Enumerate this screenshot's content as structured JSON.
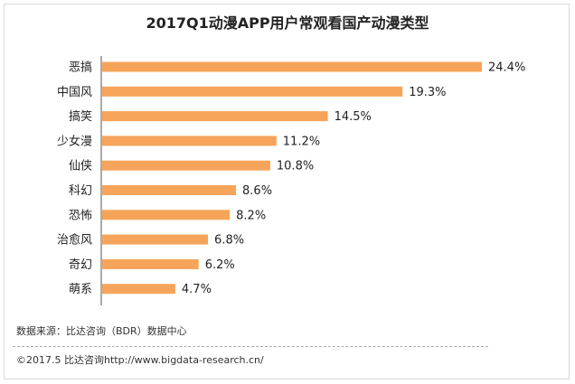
{
  "chart_data": {
    "type": "bar",
    "orientation": "horizontal",
    "title": "2017Q1动漫APP用户常观看国产动漫类型",
    "categories": [
      "恶搞",
      "中国风",
      "搞笑",
      "少女漫",
      "仙侠",
      "科幻",
      "恐怖",
      "治愈风",
      "奇幻",
      "萌系"
    ],
    "values": [
      24.4,
      19.3,
      14.5,
      11.2,
      10.8,
      8.6,
      8.2,
      6.8,
      6.2,
      4.7
    ],
    "value_labels": [
      "24.4%",
      "19.3%",
      "14.5%",
      "11.2%",
      "10.8%",
      "8.6%",
      "8.2%",
      "6.8%",
      "6.2%",
      "4.7%"
    ],
    "xlabel": "",
    "ylabel": "",
    "xlim": [
      0,
      24.4
    ],
    "bar_color": "#F6A45A"
  },
  "source": "数据来源：比达咨询（BDR）数据中心",
  "footer": "©2017.5    比达咨询http://www.bigdata-research.cn/"
}
